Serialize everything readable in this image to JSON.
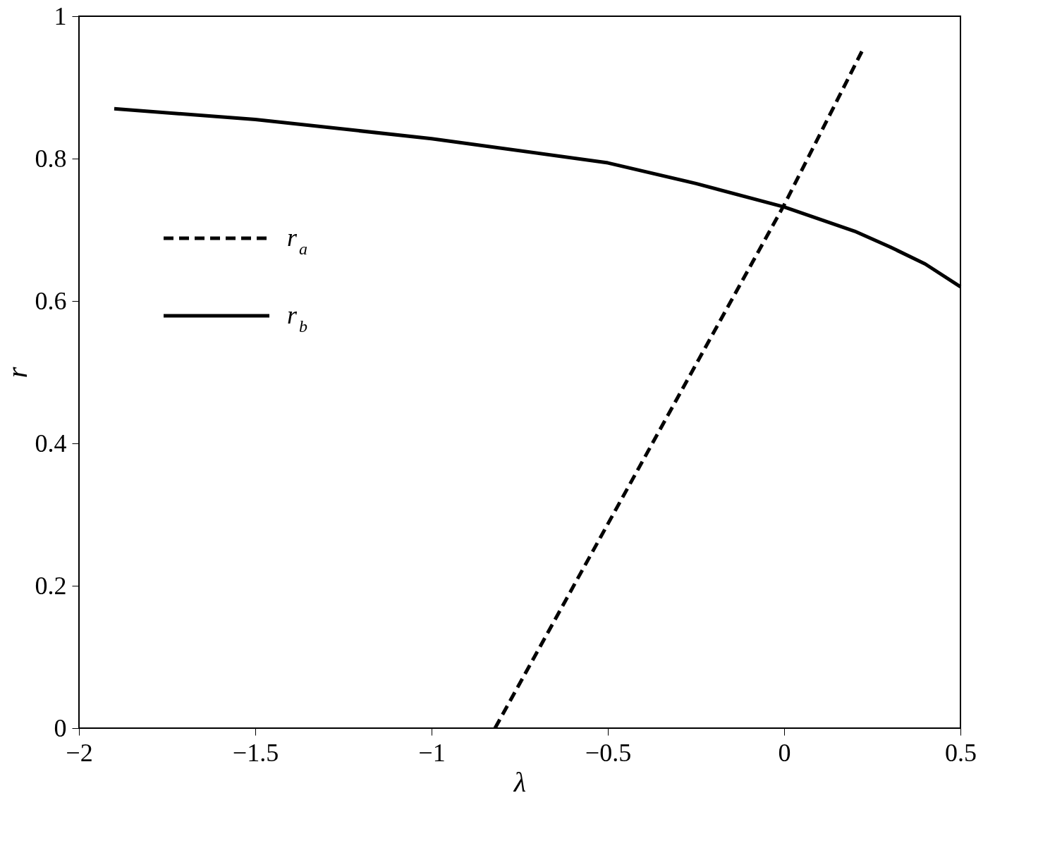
{
  "chart_data": {
    "type": "line",
    "xlabel": "λ",
    "ylabel": "r",
    "xlim": [
      -2,
      0.5
    ],
    "xticks": [
      -2,
      -1.5,
      -1,
      -0.5,
      0,
      0.5
    ],
    "ylim": [
      0,
      1
    ],
    "yticks": [
      0,
      0.2,
      0.4,
      0.6,
      0.8,
      1
    ],
    "grid": false,
    "legend": "top left",
    "marker": "none",
    "series": [
      {
        "name": "r$_{a}$",
        "color": "#000000",
        "line_style": "dashed",
        "x": [
          -0.82,
          0,
          0.225
        ],
        "values": [
          0,
          0.735,
          0.955
        ]
      },
      {
        "name": "r$_{b}$",
        "color": "#000000",
        "line_style": "solid",
        "x": [
          -1.9,
          -1.5,
          -1,
          -0.5,
          -0.25,
          0,
          0.2,
          0.3,
          0.4,
          0.5
        ],
        "values": [
          0.87,
          0.855,
          0.828,
          0.794,
          0.765,
          0.732,
          0.698,
          0.676,
          0.652,
          0.62
        ]
      }
    ]
  }
}
